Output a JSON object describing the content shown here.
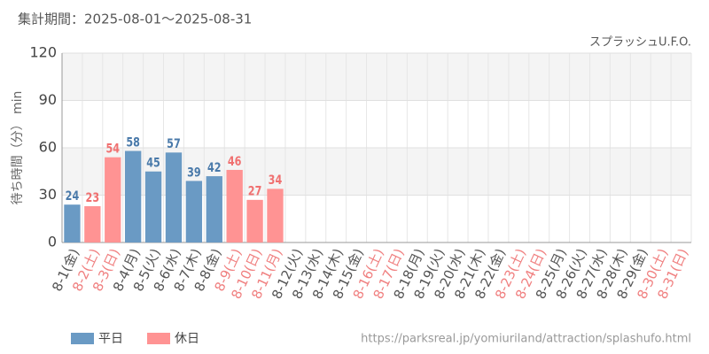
{
  "chart_data": {
    "type": "bar",
    "title": "集計期間：2025-08-01〜2025-08-31",
    "subtitle": "スプラッシュU.F.O.",
    "y_label": "待ち時間（分） min",
    "source": "https://parksreal.jp/yomiuriland/attraction/splashufo.html",
    "categories": [
      "8-1(金)",
      "8-2(土)",
      "8-3(日)",
      "8-4(月)",
      "8-5(火)",
      "8-6(水)",
      "8-7(木)",
      "8-8(金)",
      "8-9(土)",
      "8-10(日)",
      "8-11(月)",
      "8-12(火)",
      "8-13(水)",
      "8-14(木)",
      "8-15(金)",
      "8-16(土)",
      "8-17(日)",
      "8-18(月)",
      "8-19(火)",
      "8-20(水)",
      "8-21(木)",
      "8-22(金)",
      "8-23(土)",
      "8-24(日)",
      "8-25(月)",
      "8-26(火)",
      "8-27(水)",
      "8-28(木)",
      "8-29(金)",
      "8-30(土)",
      "8-31(日)"
    ],
    "category_colors": [
      "#555555",
      "#f08080",
      "#f08080",
      "#555555",
      "#555555",
      "#555555",
      "#555555",
      "#555555",
      "#f08080",
      "#f08080",
      "#f08080",
      "#555555",
      "#555555",
      "#555555",
      "#555555",
      "#f08080",
      "#f08080",
      "#555555",
      "#555555",
      "#555555",
      "#555555",
      "#555555",
      "#f08080",
      "#f08080",
      "#555555",
      "#555555",
      "#555555",
      "#555555",
      "#555555",
      "#f08080",
      "#f08080"
    ],
    "series": [
      {
        "name": "平日",
        "color": "#6a9ac4",
        "label_color": "#4a7aaa",
        "values": [
          24,
          null,
          null,
          58,
          45,
          57,
          39,
          42,
          null,
          null,
          null,
          null,
          null,
          null,
          null,
          null,
          null,
          null,
          null,
          null,
          null,
          null,
          null,
          null,
          null,
          null,
          null,
          null,
          null,
          null,
          null
        ]
      },
      {
        "name": "休日",
        "color": "#ff9393",
        "label_color": "#f07070",
        "values": [
          null,
          23,
          54,
          null,
          null,
          null,
          null,
          null,
          46,
          27,
          34,
          null,
          null,
          null,
          null,
          null,
          null,
          null,
          null,
          null,
          null,
          null,
          null,
          null,
          null,
          null,
          null,
          null,
          null,
          null,
          null
        ]
      }
    ],
    "ylim": [
      0,
      120
    ],
    "yticks": [
      0,
      30,
      60,
      90,
      120
    ],
    "grid": true
  }
}
